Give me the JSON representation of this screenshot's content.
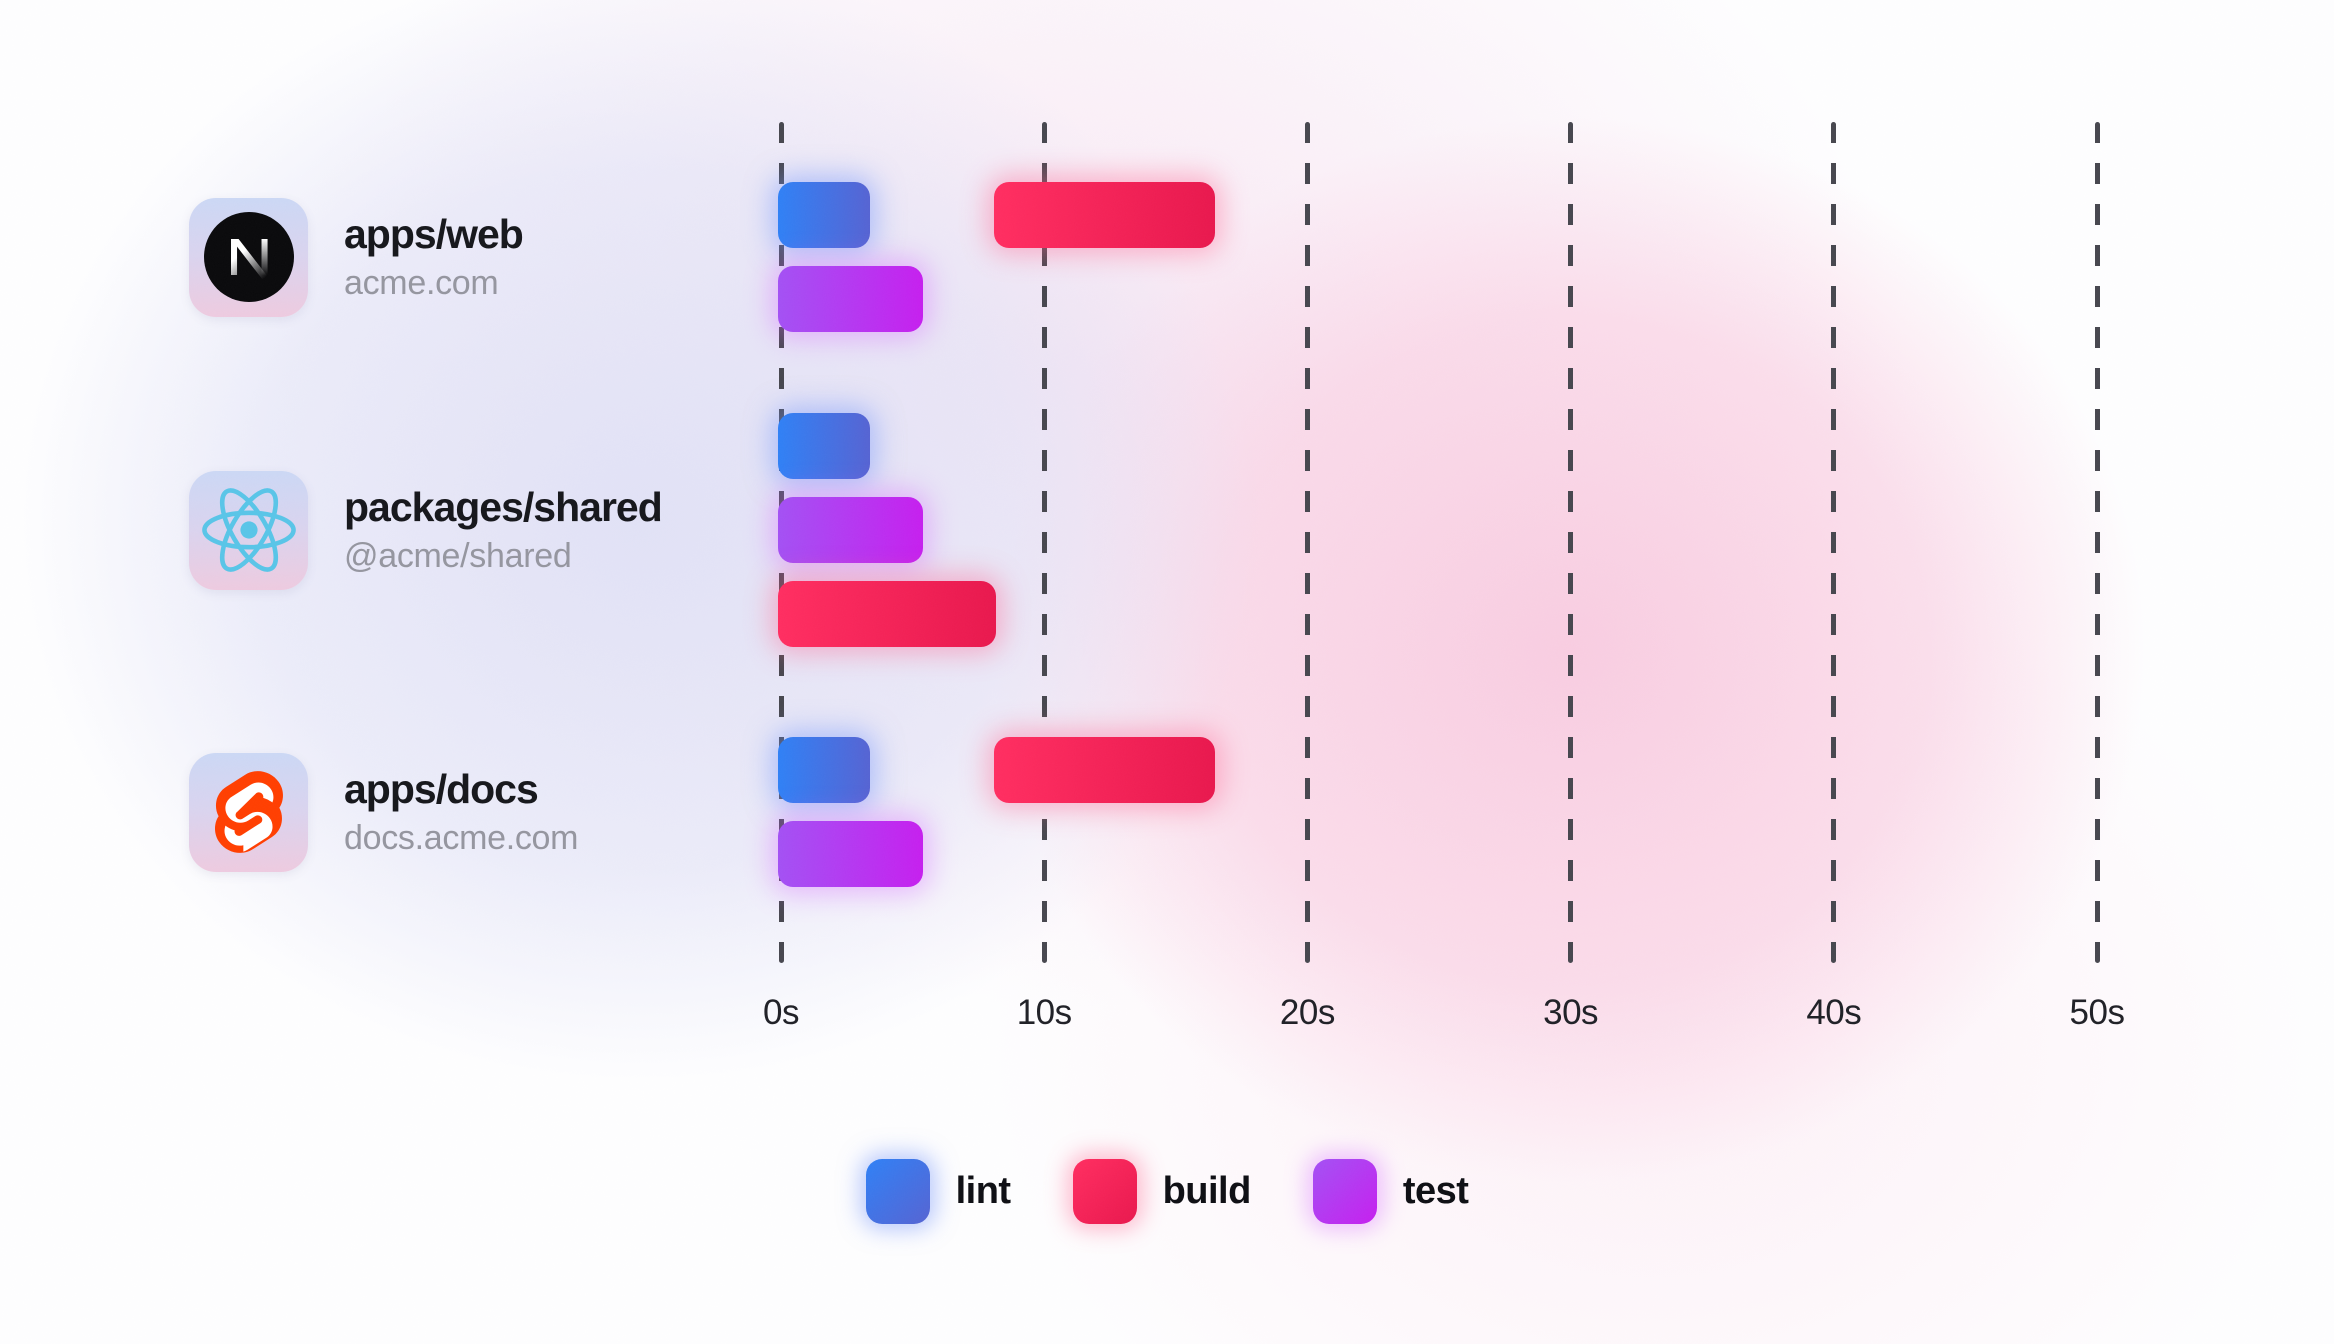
{
  "chart_data": {
    "type": "gantt",
    "title": "",
    "x_unit": "seconds",
    "x_range": [
      0,
      50
    ],
    "grid": "dashed-vertical",
    "x_ticks": [
      {
        "label": "0s",
        "seconds": 0
      },
      {
        "label": "10s",
        "seconds": 10
      },
      {
        "label": "20s",
        "seconds": 20
      },
      {
        "label": "30s",
        "seconds": 30
      },
      {
        "label": "40s",
        "seconds": 40
      },
      {
        "label": "50s",
        "seconds": 50
      }
    ],
    "rows": [
      {
        "title": "apps/web",
        "subtitle": "acme.com",
        "icon": "nextjs-icon",
        "lanes": 2,
        "tasks": [
          {
            "task": "lint",
            "start": 0,
            "duration": 3.5,
            "lane": 0
          },
          {
            "task": "build",
            "start": 8.2,
            "duration": 8.4,
            "lane": 0
          },
          {
            "task": "test",
            "start": 0,
            "duration": 5.5,
            "lane": 1
          }
        ]
      },
      {
        "title": "packages/shared",
        "subtitle": "@acme/shared",
        "icon": "react-icon",
        "lanes": 3,
        "tasks": [
          {
            "task": "lint",
            "start": 0,
            "duration": 3.5,
            "lane": 0
          },
          {
            "task": "test",
            "start": 0,
            "duration": 5.5,
            "lane": 1
          },
          {
            "task": "build",
            "start": 0,
            "duration": 8.3,
            "lane": 2
          }
        ]
      },
      {
        "title": "apps/docs",
        "subtitle": "docs.acme.com",
        "icon": "svelte-icon",
        "lanes": 2,
        "tasks": [
          {
            "task": "lint",
            "start": 0,
            "duration": 3.5,
            "lane": 0
          },
          {
            "task": "build",
            "start": 8.2,
            "duration": 8.4,
            "lane": 0
          },
          {
            "task": "test",
            "start": 0,
            "duration": 5.5,
            "lane": 1
          }
        ]
      }
    ]
  },
  "legend": [
    {
      "task": "lint",
      "label": "lint"
    },
    {
      "task": "build",
      "label": "build"
    },
    {
      "task": "test",
      "label": "test"
    }
  ],
  "task_colors": {
    "lint": {
      "from": "#2f80f5",
      "to": "#5563d2",
      "glow": "rgba(120,152,252,0.50)"
    },
    "build": {
      "from": "#ff2d60",
      "to": "#e8174d",
      "glow": "rgba(255,95,140,0.42)"
    },
    "test": {
      "from": "#a350f3",
      "to": "#c51fee",
      "glow": "rgba(214,102,255,0.40)"
    }
  },
  "misc_colors": {
    "gridline": "#46464e",
    "tick_text": "#1f2026",
    "title_text": "#15161b",
    "subtitle_text": "#94959f",
    "react_cyan": "#58c4e7",
    "svelte_orange": "#ff3e00",
    "next_black": "#09090b"
  }
}
